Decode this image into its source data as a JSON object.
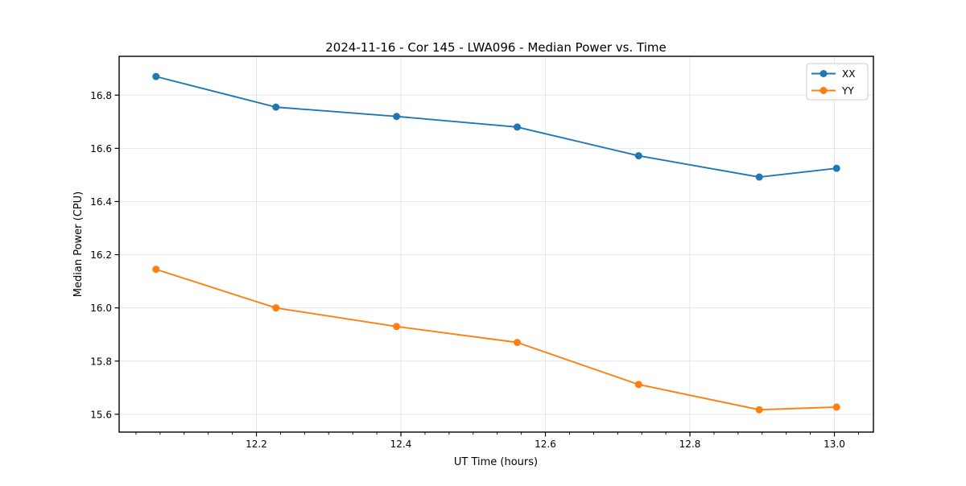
{
  "chart_data": {
    "type": "line",
    "title": "2024-11-16 - Cor 145 - LWA096 - Median Power vs. Time",
    "xlabel": "UT Time (hours)",
    "ylabel": "Median Power (CPU)",
    "x": [
      12.061,
      12.227,
      12.394,
      12.561,
      12.729,
      12.896,
      13.003
    ],
    "series": [
      {
        "name": "XX",
        "color": "#1f77b4",
        "values": [
          16.87,
          16.755,
          16.72,
          16.68,
          16.572,
          16.492,
          16.525
        ]
      },
      {
        "name": "YY",
        "color": "#ff7f0e",
        "values": [
          16.145,
          16.0,
          15.93,
          15.87,
          15.712,
          15.617,
          15.627
        ]
      }
    ],
    "xlim": [
      12.01,
      13.054
    ],
    "ylim": [
      15.533,
      16.946
    ],
    "xticks": [
      12.2,
      12.4,
      12.6,
      12.8,
      13.0
    ],
    "yticks": [
      15.6,
      15.8,
      16.0,
      16.2,
      16.4,
      16.6,
      16.8
    ],
    "x_minor_step_per_hour": 30,
    "grid": true,
    "grid_color": "#e6e6e6",
    "spine_color": "#000000",
    "legend_position": "upper right",
    "legend_border_color": "#cccccc",
    "marker": "circle",
    "marker_radius": 4.5,
    "line_width": 1.9
  }
}
